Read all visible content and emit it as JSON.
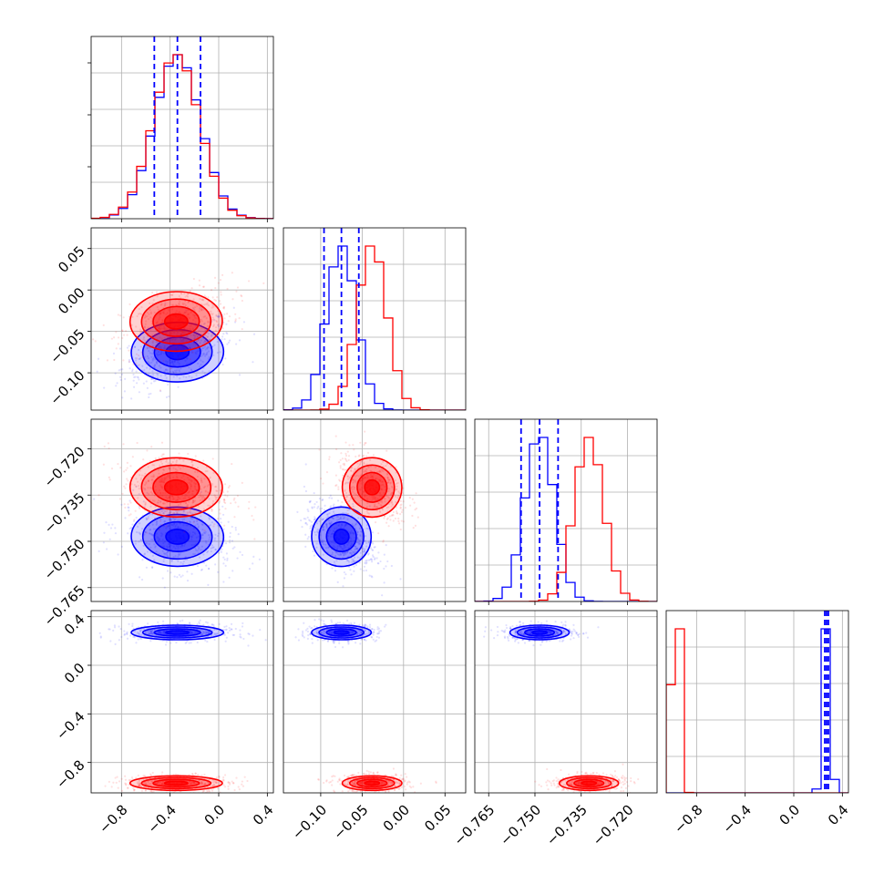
{
  "chart_data": {
    "type": "corner",
    "series": [
      {
        "color": "#0000ff"
      },
      {
        "color": "#ff0000"
      }
    ],
    "parameters": [
      {
        "range": [
          -1.05,
          0.45
        ],
        "ticks": [
          -0.8,
          -0.4,
          0.0,
          0.4
        ],
        "tick_labels": [
          "−0.8",
          "−0.4",
          "0.0",
          "0.4"
        ]
      },
      {
        "range": [
          -0.145,
          0.075
        ],
        "ticks": [
          -0.1,
          -0.05,
          0.0,
          0.05
        ],
        "tick_labels": [
          "−0.10",
          "−0.05",
          "0.00",
          "0.05"
        ]
      },
      {
        "range": [
          -0.7695,
          -0.7104
        ],
        "ticks": [
          -0.765,
          -0.75,
          -0.735,
          -0.72
        ],
        "tick_labels": [
          "−0.765",
          "−0.750",
          "−0.735",
          "−0.720"
        ]
      },
      {
        "range": [
          -1.05,
          0.45
        ],
        "ticks": [
          -0.8,
          -0.4,
          0.0,
          0.4
        ],
        "tick_labels": [
          "−0.8",
          "−0.4",
          "0.0",
          "0.4"
        ]
      }
    ],
    "y_axis_label_ranges": [
      null,
      {
        "ticks": [
          -0.1,
          -0.05,
          0.0,
          0.05
        ],
        "tick_labels": [
          "−0.10",
          "−0.05",
          "0.00",
          "0.05"
        ]
      },
      {
        "ticks": [
          -0.765,
          -0.75,
          -0.735,
          -0.72
        ],
        "tick_labels": [
          "−0.765",
          "−0.750",
          "−0.735",
          "−0.720"
        ]
      },
      {
        "ticks": [
          -0.8,
          -0.4,
          0.0,
          0.4
        ],
        "tick_labels": [
          "−0.8",
          "−0.4",
          "0.0",
          "0.4"
        ]
      }
    ],
    "gaussians": {
      "blue": [
        {
          "mean": -0.34,
          "sd": 0.19
        },
        {
          "mean": -0.075,
          "sd": 0.018
        },
        {
          "mean": -0.7485,
          "sd": 0.0048
        },
        {
          "mean": 0.27,
          "sd": 0.03
        }
      ],
      "red": [
        {
          "mean": -0.35,
          "sd": 0.19
        },
        {
          "mean": -0.038,
          "sd": 0.018
        },
        {
          "mean": -0.7325,
          "sd": 0.0048
        },
        {
          "mean": -0.97,
          "sd": 0.03
        }
      ]
    },
    "quantile_lines_blue": [
      [
        -0.53,
        -0.34,
        -0.15
      ],
      [
        -0.096,
        -0.075,
        -0.054
      ],
      [
        -0.7545,
        -0.7485,
        -0.7425
      ],
      [
        0.255,
        0.27,
        0.285
      ]
    ],
    "grid": true,
    "legend": "none"
  }
}
